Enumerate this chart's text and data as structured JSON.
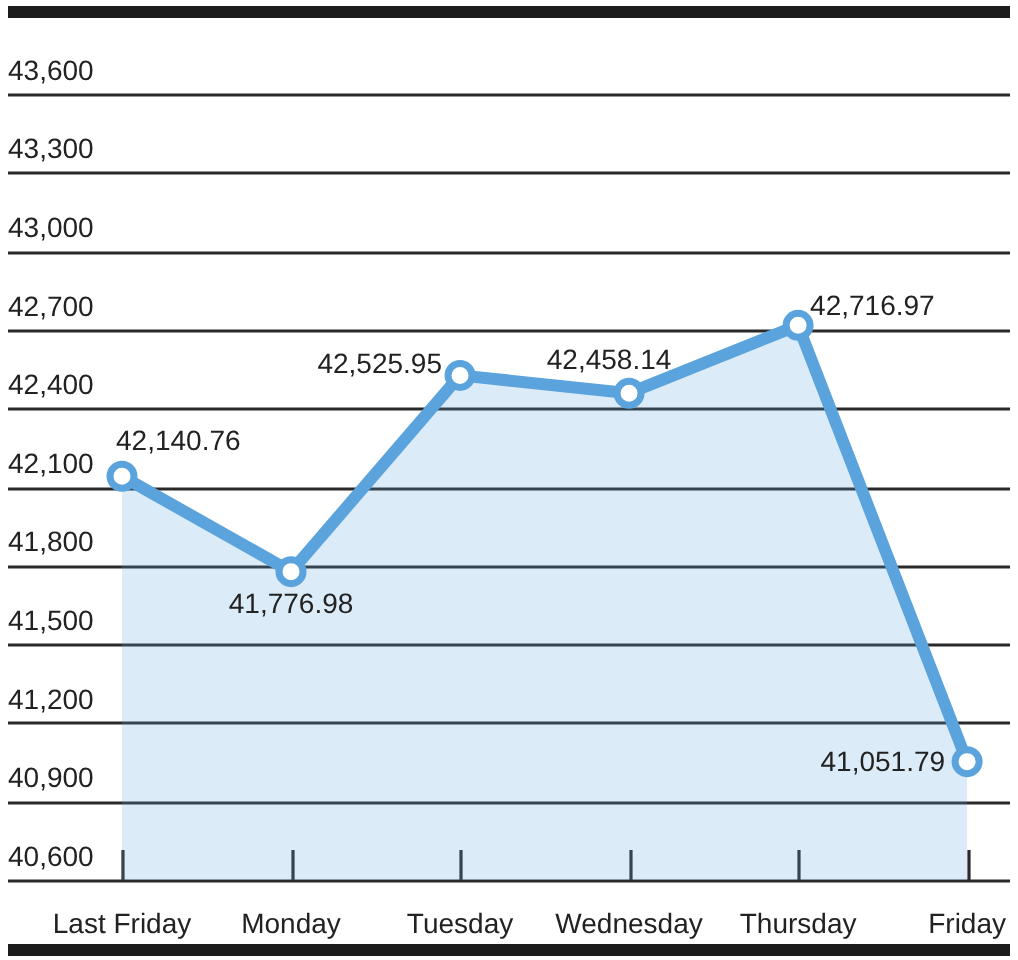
{
  "chart_data": {
    "type": "area",
    "categories": [
      "Last Friday",
      "Monday",
      "Tuesday",
      "Wednesday",
      "Thursday",
      "Friday"
    ],
    "values": [
      42140.76,
      41776.98,
      42525.95,
      42458.14,
      42716.97,
      41051.79
    ],
    "value_labels": [
      "42,140.76",
      "41,776.98",
      "42,525.95",
      "42,458.14",
      "42,716.97",
      "41,051.79"
    ],
    "color": "#5aa3dc",
    "ylim": [
      40600,
      43600
    ],
    "yticks": [
      {
        "value": 40600,
        "label": "40,600"
      },
      {
        "value": 40900,
        "label": "40,900"
      },
      {
        "value": 41200,
        "label": "41,200"
      },
      {
        "value": 41500,
        "label": "41,500"
      },
      {
        "value": 41800,
        "label": "41,800"
      },
      {
        "value": 42100,
        "label": "42,100"
      },
      {
        "value": 42400,
        "label": "42,400"
      },
      {
        "value": 42700,
        "label": "42,700"
      },
      {
        "value": 43000,
        "label": "43,000"
      },
      {
        "value": 43300,
        "label": "43,300"
      },
      {
        "value": 43600,
        "label": "43,600"
      }
    ],
    "grid": "y",
    "marker": "circle",
    "line_style": "solid"
  }
}
